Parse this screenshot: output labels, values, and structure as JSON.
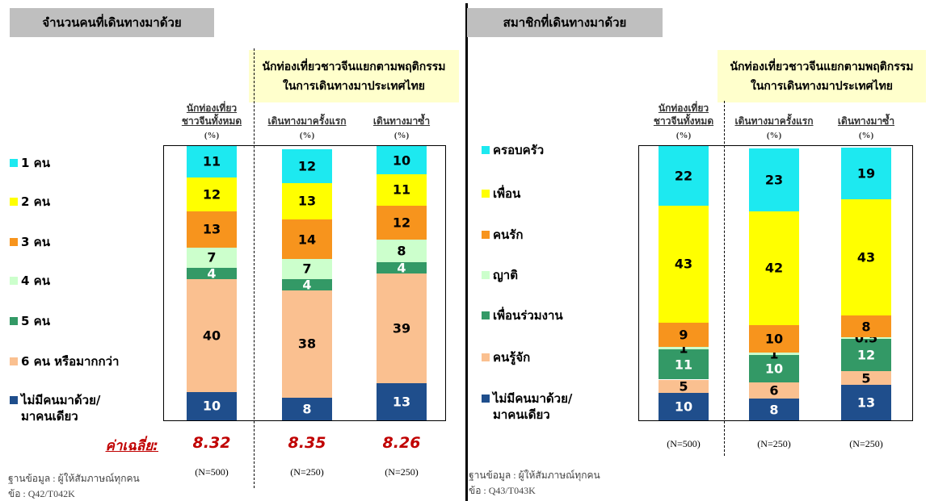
{
  "chart_data": [
    {
      "type": "stacked-bar",
      "title": "จำนวนคนที่เดินทางมาด้วย",
      "group_label": "นักท่องเที่ยวชาวจีนแยกตามพฤติกรรม\nในการเดินทางมาประเทศไทย",
      "categories": [
        "นักท่องเที่ยว\nชาวจีนทั้งหมด",
        "เดินทางมาครั้งแรก",
        "เดินทางมาซ้ำ"
      ],
      "unit": "(%)",
      "series": [
        {
          "name": "1 คน",
          "color": "#1de9f0",
          "label_color": "#000",
          "values": [
            11,
            12,
            10
          ]
        },
        {
          "name": "2 คน",
          "color": "#ffff00",
          "label_color": "#000",
          "values": [
            12,
            13,
            11
          ]
        },
        {
          "name": "3 คน",
          "color": "#f7941d",
          "label_color": "#000",
          "values": [
            13,
            14,
            12
          ]
        },
        {
          "name": "4 คน",
          "color": "#ccffcc",
          "label_color": "#000",
          "values": [
            7,
            7,
            8
          ]
        },
        {
          "name": "5 คน",
          "color": "#339966",
          "label_color": "#fff",
          "values": [
            4,
            4,
            4
          ]
        },
        {
          "name": "6 คน หรือมากกว่า",
          "color": "#fac090",
          "label_color": "#000",
          "values": [
            40,
            38,
            39
          ]
        },
        {
          "name": "ไม่มีคนมาด้วย/\nมาคนเดียว",
          "color": "#1f4e8c",
          "label_color": "#fff",
          "values": [
            10,
            8,
            13
          ]
        }
      ],
      "average_label": "ค่าเฉลี่ย:",
      "averages": [
        8.32,
        8.35,
        8.26
      ],
      "sample_sizes": [
        "(N=500)",
        "(N=250)",
        "(N=250)"
      ],
      "notes": [
        "ฐานข้อมูล : ผู้ให้สัมภาษณ์ทุกคน",
        "ข้อ : Q42/T042K"
      ]
    },
    {
      "type": "stacked-bar",
      "title": "สมาชิกที่เดินทางมาด้วย",
      "group_label": "นักท่องเที่ยวชาวจีนแยกตามพฤติกรรม\nในการเดินทางมาประเทศไทย",
      "categories": [
        "นักท่องเที่ยว\nชาวจีนทั้งหมด",
        "เดินทางมาครั้งแรก",
        "เดินทางมาซ้ำ"
      ],
      "unit": "(%)",
      "series": [
        {
          "name": "ครอบครัว",
          "color": "#1de9f0",
          "label_color": "#000",
          "values": [
            22,
            23,
            19
          ]
        },
        {
          "name": "เพื่อน",
          "color": "#ffff00",
          "label_color": "#000",
          "values": [
            43,
            42,
            43
          ]
        },
        {
          "name": "คนรัก",
          "color": "#f7941d",
          "label_color": "#000",
          "values": [
            9,
            10,
            8
          ]
        },
        {
          "name": "ญาติ",
          "color": "#ccffcc",
          "label_color": "#000",
          "values": [
            1,
            1,
            0.5
          ]
        },
        {
          "name": "เพื่อนร่วมงาน",
          "color": "#339966",
          "label_color": "#fff",
          "values": [
            11,
            10,
            12
          ]
        },
        {
          "name": "คนรู้จัก",
          "color": "#fac090",
          "label_color": "#000",
          "values": [
            5,
            6,
            5
          ]
        },
        {
          "name": "ไม่มีคนมาด้วย/\nมาคนเดียว",
          "color": "#1f4e8c",
          "label_color": "#fff",
          "values": [
            10,
            8,
            13
          ]
        }
      ],
      "sample_sizes": [
        "(N=500)",
        "(N=250)",
        "(N=250)"
      ],
      "notes": [
        "ฐานข้อมูล : ผู้ให้สัมภาษณ์ทุกคน",
        "ข้อ : Q43/T043K"
      ]
    }
  ]
}
